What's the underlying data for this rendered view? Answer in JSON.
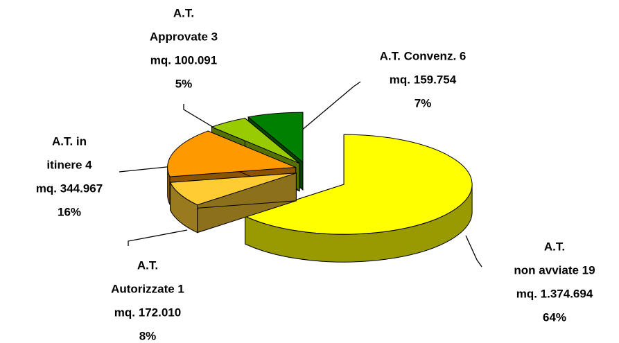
{
  "chart_data": {
    "type": "pie",
    "categories": [
      [
        "A.T.",
        "non avviate 19"
      ],
      [
        "A.T.",
        "Autorizzate 1"
      ],
      [
        "A.T.   in",
        "itinere 4"
      ],
      [
        "A.T.",
        "Approvate 3"
      ],
      [
        "A.T. Convenz. 6"
      ]
    ],
    "area_labels": [
      "mq. 1.374.694",
      "mq. 172.010",
      "mq. 344.967",
      "mq. 100.091",
      "mq. 159.754"
    ],
    "values": [
      64,
      8,
      16,
      5,
      7
    ],
    "value_labels": [
      "64%",
      "8%",
      "16%",
      "5%",
      "7%"
    ],
    "colors": [
      "#ffff00",
      "#ffcc33",
      "#ff9900",
      "#99cc00",
      "#008000"
    ]
  }
}
